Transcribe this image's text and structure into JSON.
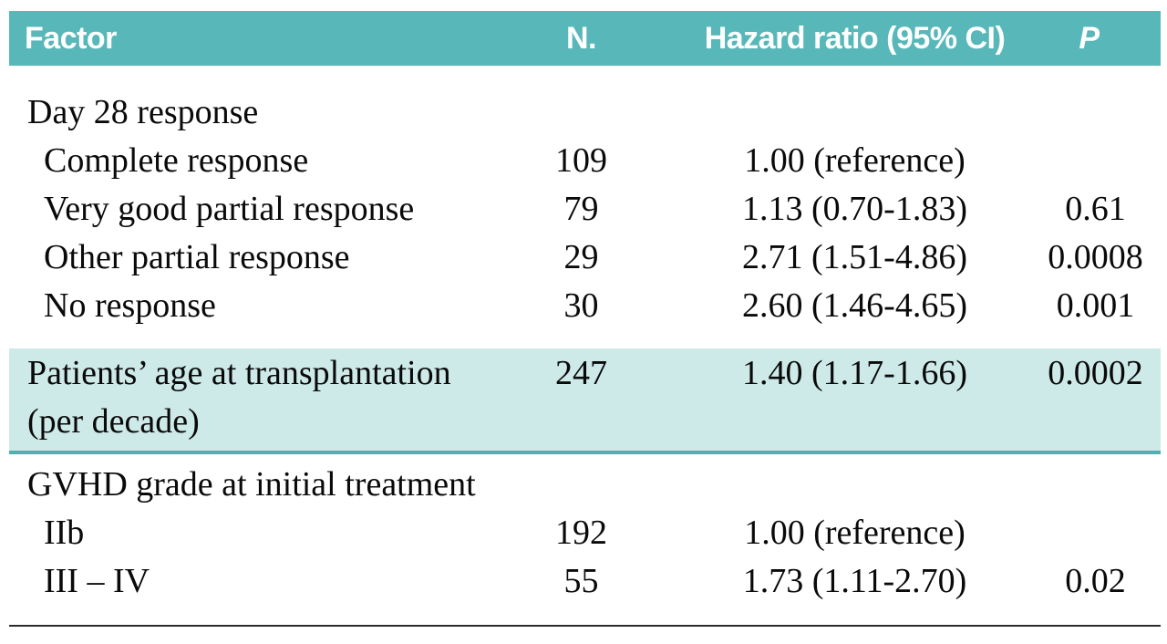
{
  "colors": {
    "header_bg": "#58b8b9",
    "header_text": "#ffffff",
    "highlight_bg": "#cdeae9",
    "highlight_rule": "#4fafb1",
    "bottom_rule": "#2b2b2b",
    "body_text": "#0a0a0a"
  },
  "table": {
    "columns": [
      {
        "key": "factor",
        "label": "Factor"
      },
      {
        "key": "n",
        "label": "N."
      },
      {
        "key": "hr",
        "label": "Hazard ratio (95% CI)"
      },
      {
        "key": "p",
        "label": "P"
      }
    ],
    "sections": [
      {
        "style": "plain",
        "rows": [
          {
            "factor": "Day 28 response",
            "indent": false,
            "n": "",
            "hr": "",
            "p": ""
          },
          {
            "factor": "Complete response",
            "indent": true,
            "n": "109",
            "hr": "1.00 (reference)",
            "p": ""
          },
          {
            "factor": "Very good partial response",
            "indent": true,
            "n": "79",
            "hr": "1.13 (0.70-1.83)",
            "p": "0.61"
          },
          {
            "factor": "Other partial response",
            "indent": true,
            "n": "29",
            "hr": "2.71 (1.51-4.86)",
            "p": "0.0008"
          },
          {
            "factor": "No response",
            "indent": true,
            "n": "30",
            "hr": "2.60 (1.46-4.65)",
            "p": "0.001"
          }
        ]
      },
      {
        "style": "highlight",
        "rows": [
          {
            "factor": "Patients’ age at transplantation",
            "factor_line2": "(per decade)",
            "indent": false,
            "n": "247",
            "hr": "1.40 (1.17-1.66)",
            "p": "0.0002"
          }
        ]
      },
      {
        "style": "plain",
        "rows": [
          {
            "factor": "GVHD grade at initial treatment",
            "indent": false,
            "n": "",
            "hr": "",
            "p": ""
          },
          {
            "factor": "IIb",
            "indent": true,
            "n": "192",
            "hr": "1.00 (reference)",
            "p": ""
          },
          {
            "factor": "III – IV",
            "indent": true,
            "n": "55",
            "hr": "1.73 (1.11-2.70)",
            "p": "0.02"
          }
        ]
      }
    ]
  }
}
